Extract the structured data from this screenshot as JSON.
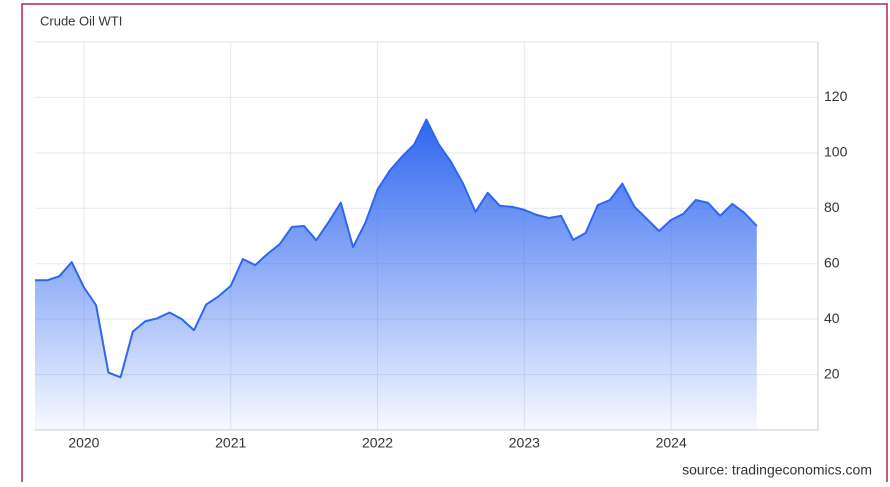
{
  "chart_data": {
    "type": "area",
    "title": "Crude Oil WTI",
    "source": "source: tradingeconomics.com",
    "color": "#2f66f0",
    "grid": true,
    "y_axis_side": "right",
    "x": [
      2019.667,
      2019.75,
      2019.833,
      2019.917,
      2020.0,
      2020.083,
      2020.167,
      2020.25,
      2020.333,
      2020.417,
      2020.5,
      2020.583,
      2020.667,
      2020.75,
      2020.833,
      2020.917,
      2021.0,
      2021.083,
      2021.167,
      2021.25,
      2021.333,
      2021.417,
      2021.5,
      2021.583,
      2021.667,
      2021.75,
      2021.833,
      2021.917,
      2022.0,
      2022.083,
      2022.167,
      2022.25,
      2022.333,
      2022.417,
      2022.5,
      2022.583,
      2022.667,
      2022.75,
      2022.833,
      2022.917,
      2023.0,
      2023.083,
      2023.167,
      2023.25,
      2023.333,
      2023.417,
      2023.5,
      2023.583,
      2023.667,
      2023.75,
      2023.833,
      2023.917,
      2024.0,
      2024.083,
      2024.167,
      2024.25,
      2024.333,
      2024.417,
      2024.5,
      2024.583
    ],
    "values": [
      54,
      54,
      55.5,
      60.6,
      51.5,
      45,
      20.7,
      19,
      35.5,
      39.2,
      40.3,
      42.4,
      40,
      36,
      45.3,
      48.2,
      52,
      61.7,
      59.5,
      63.5,
      67,
      73.3,
      73.6,
      68.5,
      75,
      82,
      66,
      74.7,
      86.7,
      93.6,
      98.7,
      103,
      112,
      103,
      96.8,
      88.9,
      78.7,
      85.6,
      80.9,
      80.5,
      79.4,
      77.6,
      76.5,
      77.3,
      68.6,
      71.1,
      81.2,
      83,
      88.9,
      80.5,
      76.2,
      71.8,
      75.8,
      78,
      83,
      82,
      77.3,
      81.6,
      78.3,
      73.6
    ],
    "xlim": [
      2019.667,
      2025.0
    ],
    "xticks": [
      2020,
      2021,
      2022,
      2023,
      2024
    ],
    "ylim": [
      0,
      140
    ],
    "yticks": [
      20,
      40,
      60,
      80,
      100,
      120
    ]
  }
}
